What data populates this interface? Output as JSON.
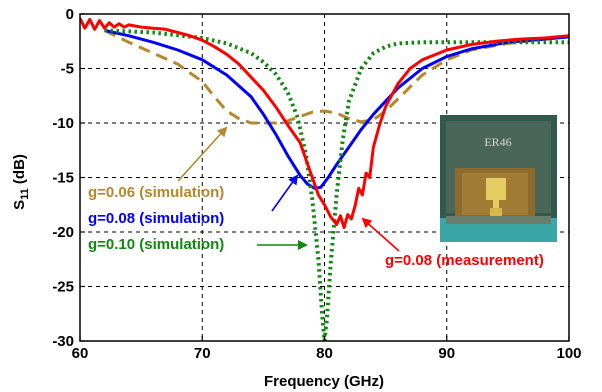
{
  "chart_data": {
    "type": "line",
    "title": "",
    "xlabel": "Frequency (GHz)",
    "ylabel_main": "S",
    "ylabel_sub": "11",
    "ylabel_unit": " (dB)",
    "xlim": [
      60,
      100
    ],
    "ylim": [
      -30,
      0
    ],
    "xticks": [
      "60",
      "70",
      "80",
      "90",
      "100"
    ],
    "yticks": [
      "0",
      "-5",
      "-10",
      "-15",
      "-20",
      "-25",
      "-30"
    ],
    "grid": true,
    "grid_style": "dashed",
    "series": [
      {
        "name": "g=0.06 (simulation)",
        "color": "#b8862b",
        "dash": "dashed",
        "x": [
          62,
          64,
          66,
          68,
          70,
          71,
          72,
          73,
          74,
          75,
          76,
          77,
          78,
          79,
          80,
          81,
          82,
          83,
          84,
          85,
          86,
          88,
          90,
          92,
          95,
          98,
          100
        ],
        "y": [
          -1.5,
          -2.6,
          -3.6,
          -4.6,
          -6.2,
          -7.6,
          -8.9,
          -9.6,
          -10.0,
          -10.0,
          -10.0,
          -9.8,
          -9.4,
          -9.0,
          -8.9,
          -9.1,
          -9.6,
          -9.9,
          -9.7,
          -8.9,
          -7.8,
          -5.6,
          -4.2,
          -3.3,
          -2.7,
          -2.3,
          -2.1
        ]
      },
      {
        "name": "g=0.08 (simulation)",
        "color": "#0000ff",
        "dash": "solid",
        "x": [
          62,
          64,
          66,
          68,
          70,
          72,
          74,
          75,
          76,
          77,
          78,
          78.6,
          79.2,
          79.7,
          80.3,
          81,
          82,
          83,
          84,
          85,
          86,
          88,
          90,
          92,
          95,
          98,
          100
        ],
        "y": [
          -1.5,
          -2.0,
          -2.6,
          -3.3,
          -4.2,
          -5.6,
          -7.6,
          -9.2,
          -11.0,
          -13.0,
          -14.8,
          -15.6,
          -16.0,
          -15.9,
          -15.0,
          -13.8,
          -12.2,
          -10.6,
          -9.2,
          -8.0,
          -6.8,
          -5.0,
          -3.9,
          -3.2,
          -2.6,
          -2.3,
          -2.1
        ]
      },
      {
        "name": "g=0.10 (simulation)",
        "color": "#118a11",
        "dash": "dotted",
        "x": [
          62,
          66,
          70,
          72,
          74,
          75,
          76,
          77,
          77.8,
          78.5,
          79.0,
          79.5,
          79.8,
          80.0,
          80.2,
          80.5,
          81.0,
          81.5,
          82,
          83,
          84,
          85,
          86,
          88,
          90,
          92,
          95,
          98,
          100
        ],
        "y": [
          -1.5,
          -1.7,
          -2.2,
          -2.7,
          -3.6,
          -4.4,
          -5.5,
          -7.2,
          -9.5,
          -13.0,
          -17.0,
          -22.5,
          -27.5,
          -30.0,
          -28.0,
          -23.0,
          -16.5,
          -11.5,
          -8.0,
          -5.0,
          -3.6,
          -3.0,
          -2.7,
          -2.6,
          -2.6,
          -2.6,
          -2.6,
          -2.6,
          -2.6
        ]
      },
      {
        "name": "g=0.08 (measurement)",
        "color": "#ff0000",
        "dash": "solid",
        "x": [
          60,
          60.4,
          60.8,
          61.2,
          61.6,
          62,
          62.4,
          62.8,
          63.2,
          63.6,
          64,
          65,
          66,
          67,
          68,
          69,
          70,
          71,
          72,
          73,
          74,
          75,
          76,
          77,
          78,
          78.5,
          79,
          79.5,
          80,
          80.5,
          81,
          81.3,
          81.6,
          81.9,
          82.2,
          82.5,
          82.8,
          83.1,
          83.4,
          83.7,
          84,
          84.5,
          85,
          86,
          87,
          88,
          90,
          92,
          94,
          96,
          98,
          100
        ],
        "y": [
          -0.4,
          -1.3,
          -0.5,
          -1.4,
          -0.6,
          -1.3,
          -0.8,
          -1.2,
          -0.9,
          -1.2,
          -1.0,
          -1.2,
          -1.3,
          -1.4,
          -1.7,
          -2.0,
          -2.4,
          -3.0,
          -3.7,
          -4.6,
          -5.8,
          -7.0,
          -8.5,
          -10.2,
          -11.8,
          -13.4,
          -15.0,
          -16.6,
          -17.5,
          -18.6,
          -19.3,
          -18.5,
          -19.6,
          -18.4,
          -18.8,
          -17.6,
          -16.0,
          -16.6,
          -14.6,
          -15.0,
          -12.2,
          -10.2,
          -8.5,
          -6.4,
          -5.0,
          -4.2,
          -3.3,
          -2.8,
          -2.5,
          -2.3,
          -2.2,
          -2.0
        ]
      }
    ],
    "annotations": [
      {
        "text": "g=0.06 (simulation)",
        "color": "#b8862b"
      },
      {
        "text": "g=0.08 (simulation)",
        "color": "#0000ff"
      },
      {
        "text": "g=0.10 (simulation)",
        "color": "#118a11"
      },
      {
        "text": "g=0.08 (measurement)",
        "color": "#ff0000"
      }
    ],
    "inset": {
      "label": "ER46"
    }
  }
}
